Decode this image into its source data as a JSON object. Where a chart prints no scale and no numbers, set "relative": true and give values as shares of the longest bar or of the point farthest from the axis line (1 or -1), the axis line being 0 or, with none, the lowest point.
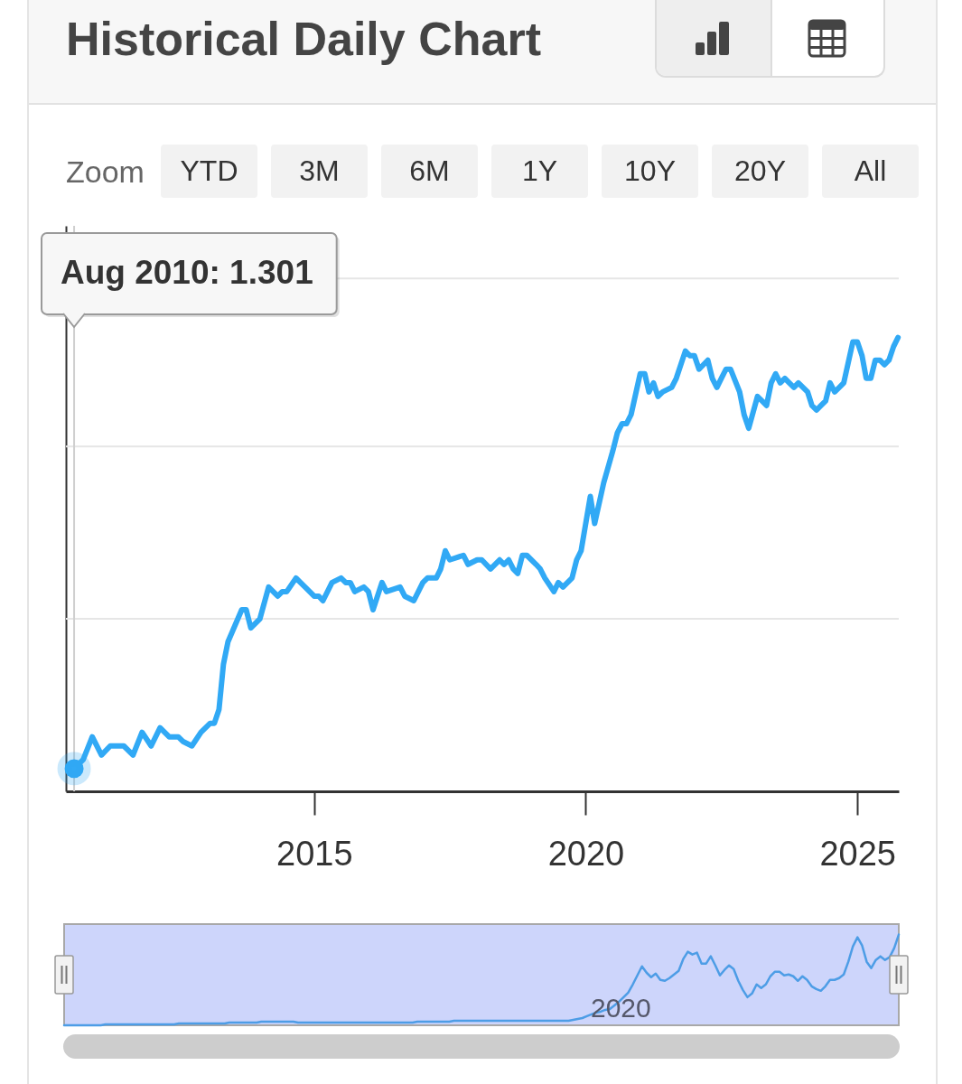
{
  "chart_data": [
    {
      "type": "line",
      "title": "Historical Daily Chart",
      "annotations": [
        "Zoom",
        "YTD",
        "3M",
        "6M",
        "1Y",
        "10Y",
        "20Y",
        "All",
        "Aug 2010: 1.301"
      ],
      "relative": true,
      "x": [
        "2010-08",
        "2010-10",
        "2010-12",
        "2011-02",
        "2011-04",
        "2011-07",
        "2011-09",
        "2011-11",
        "2012-01",
        "2012-03",
        "2012-05",
        "2012-07",
        "2012-08",
        "2012-10",
        "2012-12",
        "2013-02",
        "2013-03",
        "2013-04",
        "2013-05",
        "2013-06",
        "2013-09",
        "2013-10",
        "2013-11",
        "2014-01",
        "2014-03",
        "2014-05",
        "2014-06",
        "2014-07",
        "2014-09",
        "2014-10",
        "2014-11",
        "2015-01",
        "2015-02",
        "2015-03",
        "2015-05",
        "2015-07",
        "2015-08",
        "2015-09",
        "2015-10",
        "2015-12",
        "2016-01",
        "2016-02",
        "2016-04",
        "2016-05",
        "2016-08",
        "2016-09",
        "2016-11",
        "2017-01",
        "2017-02",
        "2017-04",
        "2017-05",
        "2017-06",
        "2017-07",
        "2017-10",
        "2017-11",
        "2018-01",
        "2018-02",
        "2018-04",
        "2018-06",
        "2018-07",
        "2018-08",
        "2018-09",
        "2018-10",
        "2018-11",
        "2018-12",
        "2019-02",
        "2019-03",
        "2019-04",
        "2019-06",
        "2019-07",
        "2019-08",
        "2019-10",
        "2019-11",
        "2019-12",
        "2020-02",
        "2020-03",
        "2020-05",
        "2020-07",
        "2020-08",
        "2020-09",
        "2020-10",
        "2020-11",
        "2021-01",
        "2021-02",
        "2021-03",
        "2021-04",
        "2021-05",
        "2021-06",
        "2021-08",
        "2021-09",
        "2021-11",
        "2021-12",
        "2022-01",
        "2022-02",
        "2022-04",
        "2022-05",
        "2022-06",
        "2022-07",
        "2022-08",
        "2022-09",
        "2022-11",
        "2022-12",
        "2023-01",
        "2023-03",
        "2023-04",
        "2023-05",
        "2023-06",
        "2023-07",
        "2023-08",
        "2023-09",
        "2023-10",
        "2023-11",
        "2023-12",
        "2024-02",
        "2024-03",
        "2024-04",
        "2024-05",
        "2024-06",
        "2024-07",
        "2024-08",
        "2024-09",
        "2024-10",
        "2024-12",
        "2025-01",
        "2025-02",
        "2025-03",
        "2025-04",
        "2025-05",
        "2025-06",
        "2025-07",
        "2025-08",
        "2025-09",
        "2025-10"
      ],
      "series": [
        {
          "color": "#31a9f5",
          "values": [
            0.05,
            0.07,
            0.12,
            0.08,
            0.1,
            0.1,
            0.08,
            0.13,
            0.1,
            0.14,
            0.12,
            0.12,
            0.11,
            0.1,
            0.13,
            0.15,
            0.15,
            0.18,
            0.28,
            0.33,
            0.4,
            0.4,
            0.36,
            0.38,
            0.45,
            0.43,
            0.44,
            0.44,
            0.47,
            0.46,
            0.45,
            0.43,
            0.43,
            0.42,
            0.46,
            0.47,
            0.46,
            0.46,
            0.44,
            0.45,
            0.44,
            0.4,
            0.46,
            0.44,
            0.45,
            0.43,
            0.42,
            0.46,
            0.47,
            0.47,
            0.49,
            0.53,
            0.51,
            0.52,
            0.5,
            0.51,
            0.51,
            0.49,
            0.51,
            0.5,
            0.51,
            0.49,
            0.48,
            0.52,
            0.52,
            0.5,
            0.49,
            0.47,
            0.44,
            0.46,
            0.45,
            0.47,
            0.51,
            0.53,
            0.65,
            0.59,
            0.68,
            0.75,
            0.79,
            0.81,
            0.81,
            0.83,
            0.92,
            0.92,
            0.88,
            0.9,
            0.87,
            0.88,
            0.89,
            0.91,
            0.97,
            0.96,
            0.96,
            0.93,
            0.95,
            0.91,
            0.89,
            0.91,
            0.93,
            0.93,
            0.88,
            0.83,
            0.8,
            0.87,
            0.86,
            0.85,
            0.9,
            0.92,
            0.9,
            0.91,
            0.9,
            0.89,
            0.9,
            0.88,
            0.85,
            0.84,
            0.85,
            0.86,
            0.9,
            0.88,
            0.89,
            0.9,
            0.99,
            0.99,
            0.96,
            0.91,
            0.91,
            0.95,
            0.95,
            0.94,
            0.95,
            0.98,
            1.0
          ]
        },
        {
          "type": "scatter",
          "x": [
            "2010-08"
          ],
          "color": "#31a9f5",
          "marker": "circle",
          "values": [
            0.05
          ]
        }
      ],
      "xlim": [
        "2010-06-07",
        "2025-10-06"
      ],
      "xticks": [
        "2015",
        "2020",
        "2025"
      ],
      "tick_labels": "x",
      "ref_lines": [
        {
          "axis": "y",
          "value": 0.38,
          "color": "#e6e6e6"
        },
        {
          "axis": "y",
          "value": 0.76,
          "color": "#e6e6e6"
        },
        {
          "axis": "y",
          "value": 1.13,
          "color": "#e6e6e6"
        },
        {
          "axis": "x",
          "value": "2010-08",
          "color": "#cfcfcf"
        }
      ]
    },
    {
      "type": "line",
      "relative": true,
      "annotations": [
        "2020"
      ],
      "categories": [
        null,
        null,
        null,
        null,
        null,
        null,
        null,
        null,
        null,
        null,
        null,
        null,
        null,
        null,
        null,
        null,
        null,
        null,
        null,
        null,
        null,
        null,
        null,
        null,
        null,
        null,
        null,
        null,
        null,
        null,
        null,
        null,
        null,
        null,
        null,
        null,
        null,
        null,
        null,
        null,
        null,
        null,
        null,
        null,
        null,
        null,
        null,
        null,
        null,
        null,
        null,
        null,
        null,
        null,
        null,
        null,
        null,
        null,
        null,
        null,
        null,
        null,
        null,
        null,
        null,
        null,
        null,
        null,
        null,
        null,
        null,
        null,
        null,
        null,
        null,
        null,
        null,
        null,
        null,
        null,
        null,
        null,
        null,
        null,
        null,
        null,
        null,
        null,
        null,
        null,
        null,
        null,
        null,
        null,
        null,
        null,
        null,
        null,
        null,
        null,
        null,
        null,
        null,
        null,
        null,
        null,
        null,
        null,
        null,
        null,
        null,
        null,
        null,
        null,
        null,
        null,
        null,
        null,
        null,
        null,
        null,
        null,
        null,
        null,
        null,
        null,
        null,
        null,
        null,
        null,
        null,
        null,
        null,
        null,
        null,
        null,
        null,
        null,
        null,
        null,
        null,
        null,
        null,
        null,
        null,
        null,
        null,
        null,
        null,
        null,
        null,
        null,
        null,
        null,
        null,
        null,
        null,
        null,
        null,
        null,
        null,
        null,
        null,
        null,
        null,
        null,
        null,
        null,
        null,
        null,
        null,
        null,
        null,
        null,
        null,
        null,
        null,
        null,
        null,
        null,
        null,
        null,
        null
      ],
      "series": [
        {
          "color": "#4d9de6",
          "values": [
            0.0,
            0.0,
            0.0,
            0.0,
            0.0,
            0.0,
            0.0,
            0.0,
            0.0,
            0.01,
            0.01,
            0.01,
            0.01,
            0.01,
            0.01,
            0.01,
            0.01,
            0.01,
            0.01,
            0.01,
            0.01,
            0.01,
            0.01,
            0.01,
            0.01,
            0.02,
            0.02,
            0.02,
            0.02,
            0.02,
            0.02,
            0.02,
            0.02,
            0.02,
            0.02,
            0.02,
            0.03,
            0.03,
            0.03,
            0.03,
            0.03,
            0.03,
            0.03,
            0.04,
            0.04,
            0.04,
            0.04,
            0.04,
            0.04,
            0.04,
            0.04,
            0.03,
            0.03,
            0.03,
            0.03,
            0.03,
            0.03,
            0.03,
            0.03,
            0.03,
            0.03,
            0.03,
            0.03,
            0.03,
            0.03,
            0.03,
            0.03,
            0.03,
            0.03,
            0.03,
            0.03,
            0.03,
            0.03,
            0.03,
            0.03,
            0.03,
            0.03,
            0.04,
            0.04,
            0.04,
            0.04,
            0.04,
            0.04,
            0.04,
            0.04,
            0.05,
            0.05,
            0.05,
            0.05,
            0.05,
            0.05,
            0.05,
            0.05,
            0.05,
            0.05,
            0.05,
            0.05,
            0.05,
            0.05,
            0.05,
            0.05,
            0.05,
            0.05,
            0.05,
            0.05,
            0.05,
            0.05,
            0.05,
            0.05,
            0.05,
            0.05,
            0.06,
            0.07,
            0.08,
            0.1,
            0.12,
            0.14,
            0.15,
            0.17,
            0.18,
            0.22,
            0.26,
            0.31,
            0.36,
            0.45,
            0.55,
            0.65,
            0.58,
            0.53,
            0.57,
            0.5,
            0.49,
            0.52,
            0.56,
            0.6,
            0.73,
            0.81,
            0.78,
            0.8,
            0.68,
            0.68,
            0.76,
            0.66,
            0.55,
            0.61,
            0.66,
            0.62,
            0.49,
            0.39,
            0.31,
            0.35,
            0.45,
            0.41,
            0.45,
            0.54,
            0.59,
            0.59,
            0.55,
            0.56,
            0.54,
            0.49,
            0.54,
            0.5,
            0.43,
            0.4,
            0.38,
            0.43,
            0.5,
            0.5,
            0.52,
            0.56,
            0.7,
            0.87,
            0.97,
            0.88,
            0.7,
            0.63,
            0.72,
            0.76,
            0.72,
            0.75,
            0.85,
            1.0
          ]
        }
      ],
      "tick_labels": false
    }
  ]
}
